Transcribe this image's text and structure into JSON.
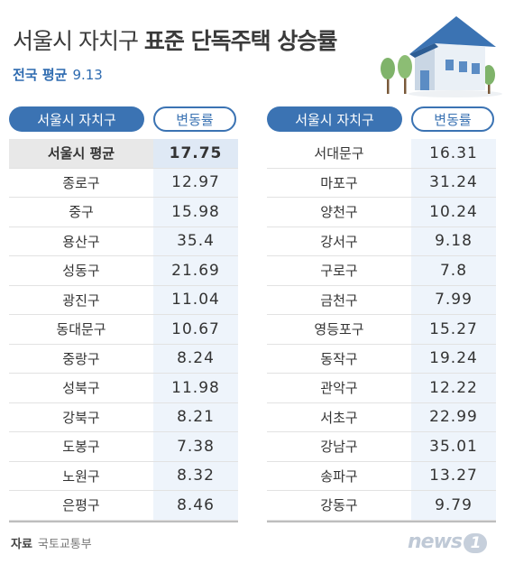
{
  "title": {
    "part1": "서울시 자치구 ",
    "part2": "표준 단독주택 상승률"
  },
  "national": {
    "label": "전국 평균",
    "value": "9.13"
  },
  "headers": {
    "district": "서울시 자치구",
    "change": "변동률"
  },
  "left_rows": [
    {
      "name": "서울시 평균",
      "value": "17.75"
    },
    {
      "name": "종로구",
      "value": "12.97"
    },
    {
      "name": "중구",
      "value": "15.98"
    },
    {
      "name": "용산구",
      "value": "35.4"
    },
    {
      "name": "성동구",
      "value": "21.69"
    },
    {
      "name": "광진구",
      "value": "11.04"
    },
    {
      "name": "동대문구",
      "value": "10.67"
    },
    {
      "name": "중랑구",
      "value": "8.24"
    },
    {
      "name": "성북구",
      "value": "11.98"
    },
    {
      "name": "강북구",
      "value": "8.21"
    },
    {
      "name": "도봉구",
      "value": "7.38"
    },
    {
      "name": "노원구",
      "value": "8.32"
    },
    {
      "name": "은평구",
      "value": "8.46"
    }
  ],
  "right_rows": [
    {
      "name": "서대문구",
      "value": "16.31"
    },
    {
      "name": "마포구",
      "value": "31.24"
    },
    {
      "name": "양천구",
      "value": "10.24"
    },
    {
      "name": "강서구",
      "value": "9.18"
    },
    {
      "name": "구로구",
      "value": "7.8"
    },
    {
      "name": "금천구",
      "value": "7.99"
    },
    {
      "name": "영등포구",
      "value": "15.27"
    },
    {
      "name": "동작구",
      "value": "19.24"
    },
    {
      "name": "관악구",
      "value": "12.22"
    },
    {
      "name": "서초구",
      "value": "22.99"
    },
    {
      "name": "강남구",
      "value": "35.01"
    },
    {
      "name": "송파구",
      "value": "13.27"
    },
    {
      "name": "강동구",
      "value": "9.79"
    }
  ],
  "source": {
    "label": "자료",
    "text": "국토교통부"
  },
  "logo": {
    "text": "news",
    "mark": "1"
  },
  "colors": {
    "accent": "#3b73b3",
    "value_bg": "#eef4fb",
    "avg_bg": "#e8e8e8"
  },
  "chart_data": {
    "type": "table",
    "title": "서울시 자치구 표준 단독주택 상승률",
    "columns": [
      "서울시 자치구",
      "변동률"
    ],
    "rows": [
      [
        "서울시 평균",
        17.75
      ],
      [
        "종로구",
        12.97
      ],
      [
        "중구",
        15.98
      ],
      [
        "용산구",
        35.4
      ],
      [
        "성동구",
        21.69
      ],
      [
        "광진구",
        11.04
      ],
      [
        "동대문구",
        10.67
      ],
      [
        "중랑구",
        8.24
      ],
      [
        "성북구",
        11.98
      ],
      [
        "강북구",
        8.21
      ],
      [
        "도봉구",
        7.38
      ],
      [
        "노원구",
        8.32
      ],
      [
        "은평구",
        8.46
      ],
      [
        "서대문구",
        16.31
      ],
      [
        "마포구",
        31.24
      ],
      [
        "양천구",
        10.24
      ],
      [
        "강서구",
        9.18
      ],
      [
        "구로구",
        7.8
      ],
      [
        "금천구",
        7.99
      ],
      [
        "영등포구",
        15.27
      ],
      [
        "동작구",
        19.24
      ],
      [
        "관악구",
        12.22
      ],
      [
        "서초구",
        22.99
      ],
      [
        "강남구",
        35.01
      ],
      [
        "송파구",
        13.27
      ],
      [
        "강동구",
        9.79
      ]
    ]
  }
}
